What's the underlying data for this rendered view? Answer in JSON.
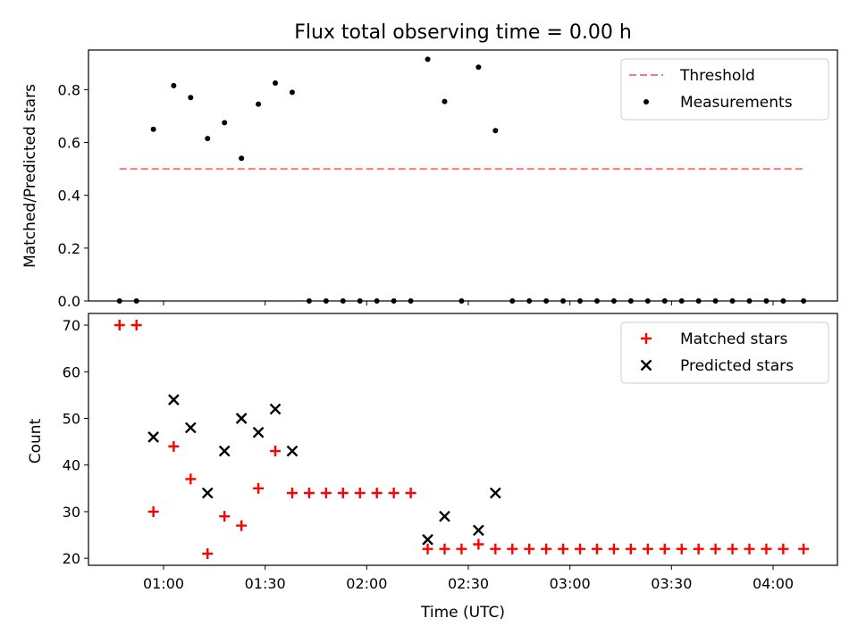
{
  "chart_data": [
    {
      "type": "scatter",
      "title": "Flux total observing time = 0.00 h",
      "xlabel": "",
      "ylabel": "Matched/Predicted stars",
      "ylim": [
        0,
        0.95
      ],
      "yticks": [
        "0.0",
        "0.2",
        "0.4",
        "0.6",
        "0.8"
      ],
      "xticks": [
        "01:00",
        "01:30",
        "02:00",
        "02:30",
        "03:00",
        "03:30",
        "04:00"
      ],
      "legend_position": "top-right",
      "series": [
        {
          "name": "Threshold",
          "kind": "dashed-line",
          "color": "#ff7777",
          "x": [
            "00:47",
            "04:09"
          ],
          "y": [
            0.5,
            0.5
          ]
        },
        {
          "name": "Measurements",
          "kind": "dot",
          "color": "#000000",
          "x": [
            "00:47",
            "00:52",
            "00:57",
            "01:03",
            "01:08",
            "01:13",
            "01:18",
            "01:23",
            "01:28",
            "01:33",
            "01:38",
            "01:43",
            "01:48",
            "01:53",
            "01:58",
            "02:03",
            "02:08",
            "02:13",
            "02:18",
            "02:23",
            "02:28",
            "02:33",
            "02:38",
            "02:43",
            "02:48",
            "02:53",
            "02:58",
            "03:03",
            "03:08",
            "03:13",
            "03:18",
            "03:23",
            "03:28",
            "03:33",
            "03:38",
            "03:43",
            "03:48",
            "03:53",
            "03:58",
            "04:03",
            "04:09"
          ],
          "y": [
            0,
            0,
            0.65,
            0.815,
            0.77,
            0.615,
            0.675,
            0.54,
            0.745,
            0.825,
            0.79,
            0,
            0,
            0,
            0,
            0,
            0,
            0,
            0.915,
            0.755,
            0,
            0.885,
            0.645,
            0,
            0,
            0,
            0,
            0,
            0,
            0,
            0,
            0,
            0,
            0,
            0,
            0,
            0,
            0,
            0,
            0,
            0
          ]
        }
      ]
    },
    {
      "type": "scatter",
      "title": "",
      "xlabel": "Time (UTC)",
      "ylabel": "Count",
      "ylim": [
        18.5,
        72.5
      ],
      "yticks": [
        "20",
        "30",
        "40",
        "50",
        "60",
        "70"
      ],
      "xticks": [
        "01:00",
        "01:30",
        "02:00",
        "02:30",
        "03:00",
        "03:30",
        "04:00"
      ],
      "legend_position": "top-right",
      "series": [
        {
          "name": "Matched stars",
          "kind": "plus",
          "color": "#ff0000",
          "x": [
            "00:47",
            "00:52",
            "00:57",
            "01:03",
            "01:08",
            "01:13",
            "01:18",
            "01:23",
            "01:28",
            "01:33",
            "01:38",
            "01:43",
            "01:48",
            "01:53",
            "01:58",
            "02:03",
            "02:08",
            "02:13",
            "02:18",
            "02:23",
            "02:28",
            "02:33",
            "02:38",
            "02:43",
            "02:48",
            "02:53",
            "02:58",
            "03:03",
            "03:08",
            "03:13",
            "03:18",
            "03:23",
            "03:28",
            "03:33",
            "03:38",
            "03:43",
            "03:48",
            "03:53",
            "03:58",
            "04:03",
            "04:09"
          ],
          "y": [
            70,
            70,
            30,
            44,
            37,
            21,
            29,
            27,
            35,
            43,
            34,
            34,
            34,
            34,
            34,
            34,
            34,
            34,
            22,
            22,
            22,
            23,
            22,
            22,
            22,
            22,
            22,
            22,
            22,
            22,
            22,
            22,
            22,
            22,
            22,
            22,
            22,
            22,
            22,
            22,
            22
          ]
        },
        {
          "name": "Predicted stars",
          "kind": "x",
          "color": "#000000",
          "x": [
            "00:57",
            "01:03",
            "01:08",
            "01:13",
            "01:18",
            "01:23",
            "01:28",
            "01:33",
            "01:38",
            "02:18",
            "02:23",
            "02:33",
            "02:38"
          ],
          "y": [
            46,
            54,
            48,
            34,
            43,
            50,
            47,
            52,
            43,
            24,
            29,
            26,
            34
          ]
        }
      ]
    }
  ]
}
